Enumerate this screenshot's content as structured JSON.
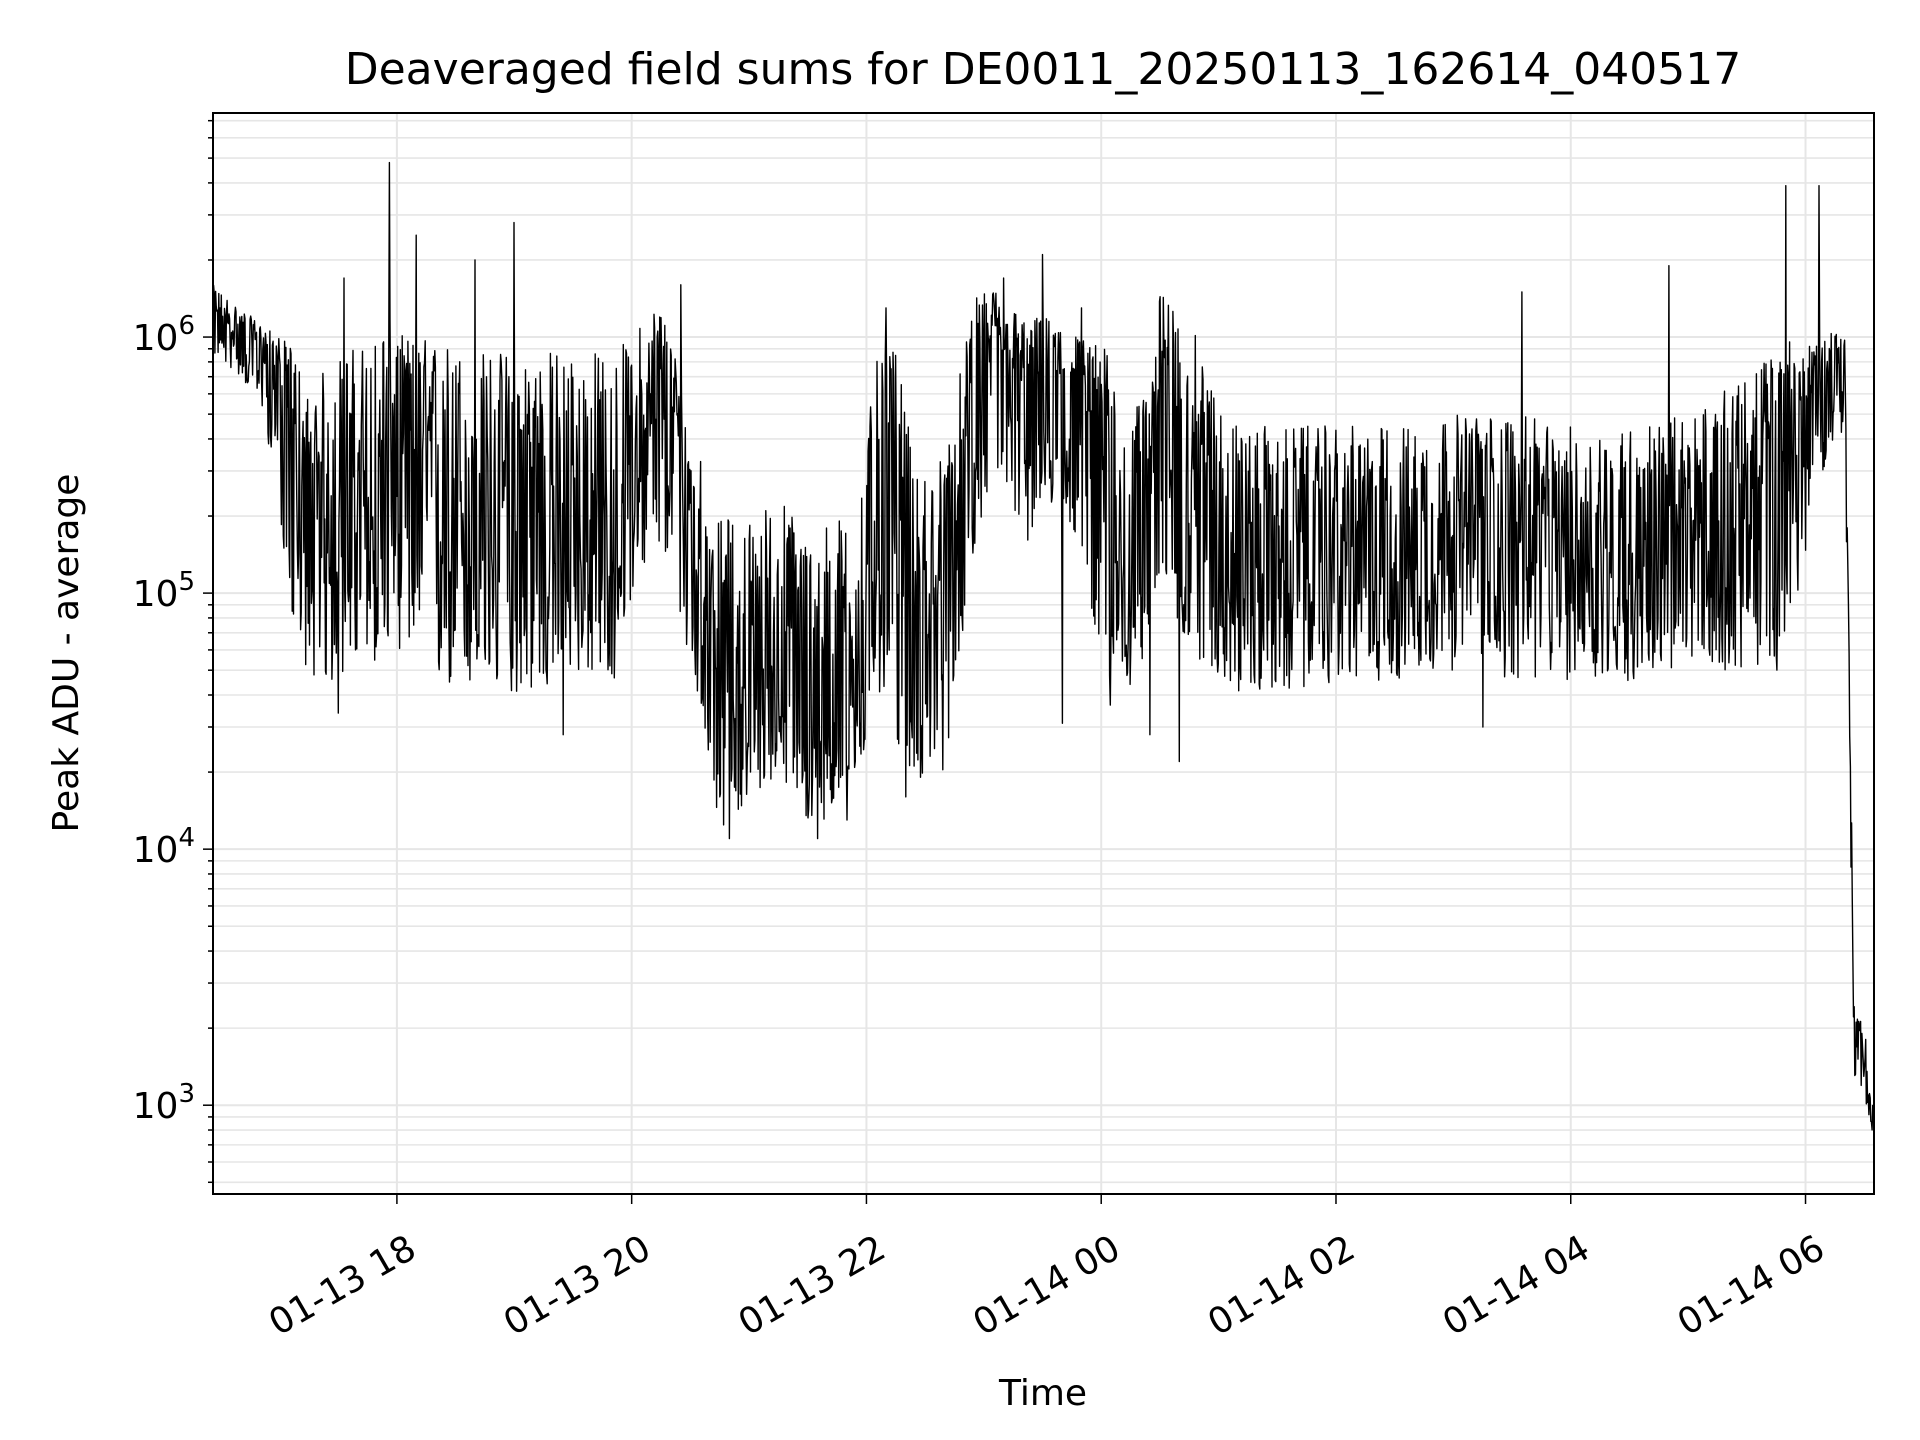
{
  "chart_data": {
    "type": "line",
    "title": "Deaveraged field sums for DE0011_20250113_162614_040517",
    "xlabel": "Time",
    "ylabel": "Peak ADU - average",
    "yscale": "log",
    "xlim": [
      "2025-01-13 16:26",
      "2025-01-14 06:35"
    ],
    "ylim": [
      450,
      7500000
    ],
    "x_ticks": [
      {
        "value": "2025-01-13 18:00",
        "label": "01-13 18"
      },
      {
        "value": "2025-01-13 20:00",
        "label": "01-13 20"
      },
      {
        "value": "2025-01-13 22:00",
        "label": "01-13 22"
      },
      {
        "value": "2025-01-14 00:00",
        "label": "01-14 00"
      },
      {
        "value": "2025-01-14 02:00",
        "label": "01-14 02"
      },
      {
        "value": "2025-01-14 04:00",
        "label": "01-14 04"
      },
      {
        "value": "2025-01-14 06:00",
        "label": "01-14 06"
      }
    ],
    "y_ticks": [
      {
        "value": 1000,
        "base": "10",
        "exp": "3"
      },
      {
        "value": 10000,
        "base": "10",
        "exp": "4"
      },
      {
        "value": 100000,
        "base": "10",
        "exp": "5"
      },
      {
        "value": 1000000,
        "base": "10",
        "exp": "6"
      }
    ],
    "grid": true,
    "line_color": "#000000",
    "grid_color": "#e6e6e6",
    "series": [
      {
        "x": [
          "2025-01-13 16:26",
          "2025-01-13 16:40",
          "2025-01-13 16:52",
          "2025-01-13 17:00",
          "2025-01-13 17:08",
          "2025-01-13 17:15",
          "2025-01-13 17:25",
          "2025-01-13 17:35",
          "2025-01-13 17:45",
          "2025-01-13 17:55",
          "2025-01-13 18:05",
          "2025-01-13 18:20",
          "2025-01-13 18:35",
          "2025-01-13 18:50",
          "2025-01-13 19:05",
          "2025-01-13 19:20",
          "2025-01-13 19:35",
          "2025-01-13 19:50",
          "2025-01-13 20:00",
          "2025-01-13 20:15",
          "2025-01-13 20:30",
          "2025-01-13 20:45",
          "2025-01-13 21:00",
          "2025-01-13 21:15",
          "2025-01-13 21:30",
          "2025-01-13 21:45",
          "2025-01-13 21:55",
          "2025-01-13 22:05",
          "2025-01-13 22:15",
          "2025-01-13 22:25",
          "2025-01-13 22:40",
          "2025-01-13 22:55",
          "2025-01-13 23:05",
          "2025-01-13 23:20",
          "2025-01-13 23:35",
          "2025-01-13 23:50",
          "2025-01-14 00:05",
          "2025-01-14 00:15",
          "2025-01-14 00:30",
          "2025-01-14 00:45",
          "2025-01-14 00:55",
          "2025-01-14 01:10",
          "2025-01-14 01:30",
          "2025-01-14 02:00",
          "2025-01-14 02:30",
          "2025-01-14 03:00",
          "2025-01-14 03:30",
          "2025-01-14 04:00",
          "2025-01-14 04:30",
          "2025-01-14 05:00",
          "2025-01-14 05:30",
          "2025-01-14 05:50",
          "2025-01-14 06:05",
          "2025-01-14 06:15",
          "2025-01-14 06:20",
          "2025-01-14 06:25",
          "2025-01-14 06:30",
          "2025-01-14 06:35"
        ],
        "y": [
          1200000,
          1000000,
          900000,
          700000,
          350000,
          120000,
          180000,
          250000,
          150000,
          300000,
          350000,
          250000,
          200000,
          180000,
          200000,
          220000,
          150000,
          120000,
          300000,
          500000,
          200000,
          60000,
          40000,
          50000,
          30000,
          50000,
          40000,
          300000,
          400000,
          60000,
          100000,
          500000,
          900000,
          600000,
          700000,
          600000,
          200000,
          100000,
          600000,
          350000,
          250000,
          150000,
          120000,
          140000,
          150000,
          170000,
          180000,
          150000,
          130000,
          160000,
          200000,
          300000,
          600000,
          900000,
          800000,
          2000,
          1600,
          800
        ],
        "lo": [
          850000,
          700000,
          500000,
          200000,
          60000,
          50000,
          40000,
          50000,
          50000,
          60000,
          60000,
          40000,
          40000,
          40000,
          40000,
          40000,
          50000,
          40000,
          100000,
          150000,
          50000,
          12000,
          15000,
          20000,
          12000,
          14000,
          15000,
          40000,
          25000,
          18000,
          20000,
          150000,
          300000,
          150000,
          200000,
          150000,
          30000,
          40000,
          90000,
          60000,
          50000,
          40000,
          40000,
          45000,
          45000,
          50000,
          45000,
          45000,
          45000,
          50000,
          50000,
          50000,
          250000,
          400000,
          300000,
          1200,
          1100,
          700
        ],
        "hi": [
          1600000,
          1300000,
          1100000,
          1000000,
          900000,
          600000,
          800000,
          900000,
          1000000,
          1200000,
          1000000,
          1000000,
          900000,
          900000,
          900000,
          900000,
          900000,
          900000,
          1000000,
          1500000,
          500000,
          200000,
          200000,
          250000,
          180000,
          200000,
          200000,
          800000,
          900000,
          300000,
          350000,
          1400000,
          1600000,
          1200000,
          1200000,
          1000000,
          900000,
          400000,
          1500000,
          1200000,
          700000,
          450000,
          450000,
          450000,
          450000,
          500000,
          500000,
          450000,
          450000,
          500000,
          700000,
          1000000,
          1000000,
          1100000,
          1000000,
          2200,
          2100,
          900
        ],
        "spikes": [
          {
            "x": "2025-01-13 17:33",
            "y": 1700000
          },
          {
            "x": "2025-01-13 17:56",
            "y": 4800000
          },
          {
            "x": "2025-01-13 18:10",
            "y": 2500000
          },
          {
            "x": "2025-01-13 18:40",
            "y": 2000000
          },
          {
            "x": "2025-01-13 19:00",
            "y": 2800000
          },
          {
            "x": "2025-01-13 20:25",
            "y": 1600000
          },
          {
            "x": "2025-01-13 22:10",
            "y": 1300000
          },
          {
            "x": "2025-01-13 23:10",
            "y": 1700000
          },
          {
            "x": "2025-01-13 23:30",
            "y": 2100000
          },
          {
            "x": "2025-01-13 23:50",
            "y": 1300000
          },
          {
            "x": "2025-01-14 00:40",
            "y": 1900000
          },
          {
            "x": "2025-01-14 03:35",
            "y": 1500000
          },
          {
            "x": "2025-01-14 04:50",
            "y": 1900000
          },
          {
            "x": "2025-01-14 05:50",
            "y": 3900000
          },
          {
            "x": "2025-01-14 06:07",
            "y": 3900000
          }
        ],
        "dips": [
          {
            "x": "2025-01-13 17:30",
            "y": 34000
          },
          {
            "x": "2025-01-13 19:25",
            "y": 28000
          },
          {
            "x": "2025-01-13 20:45",
            "y": 16000
          },
          {
            "x": "2025-01-13 20:50",
            "y": 11000
          },
          {
            "x": "2025-01-13 21:35",
            "y": 11000
          },
          {
            "x": "2025-01-13 21:50",
            "y": 13000
          },
          {
            "x": "2025-01-13 22:20",
            "y": 16000
          },
          {
            "x": "2025-01-13 23:40",
            "y": 31000
          },
          {
            "x": "2025-01-14 00:25",
            "y": 28000
          },
          {
            "x": "2025-01-14 00:40",
            "y": 22000
          },
          {
            "x": "2025-01-14 03:15",
            "y": 30000
          }
        ]
      }
    ]
  }
}
